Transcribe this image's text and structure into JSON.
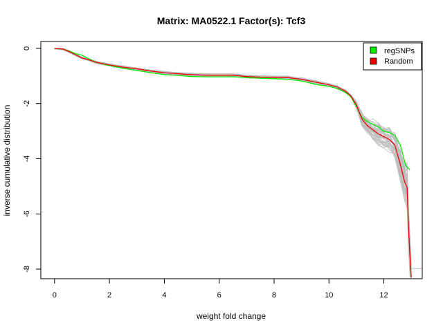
{
  "chart_data": {
    "type": "line",
    "title": "Matrix: MA0522.1 Factor(s): Tcf3",
    "xlabel": "weight fold change",
    "ylabel": "inverse cumulative distribution",
    "xlim": [
      -0.5,
      13.4
    ],
    "ylim": [
      -8.35,
      0.25
    ],
    "x_ticks": [
      "0",
      "2",
      "4",
      "6",
      "8",
      "10",
      "12"
    ],
    "y_ticks": [
      "0",
      "-2",
      "-4",
      "-6",
      "-8"
    ],
    "legend_position": "top-right",
    "series": [
      {
        "name": "regSNPs",
        "color": "#00ee00",
        "x": [
          0,
          0.3,
          0.5,
          0.8,
          1.0,
          1.2,
          1.5,
          2.0,
          2.5,
          3.0,
          3.5,
          4.0,
          4.5,
          5.0,
          5.5,
          6.0,
          6.5,
          7.0,
          7.5,
          8.0,
          8.5,
          9.0,
          9.5,
          10.0,
          10.3,
          10.6,
          10.8,
          11.0,
          11.2,
          11.4,
          11.6,
          11.8,
          12.0,
          12.2,
          12.4,
          12.6,
          12.8,
          12.95
        ],
        "y": [
          0,
          -0.02,
          -0.08,
          -0.2,
          -0.25,
          -0.35,
          -0.5,
          -0.62,
          -0.72,
          -0.8,
          -0.88,
          -0.95,
          -0.98,
          -1.02,
          -1.03,
          -1.03,
          -1.03,
          -1.06,
          -1.08,
          -1.1,
          -1.12,
          -1.18,
          -1.3,
          -1.38,
          -1.45,
          -1.6,
          -1.75,
          -2.1,
          -2.5,
          -2.65,
          -2.75,
          -2.85,
          -3.0,
          -3.05,
          -3.15,
          -3.5,
          -4.25,
          -4.4
        ]
      },
      {
        "name": "Random",
        "color": "#ee0000",
        "x": [
          0,
          0.3,
          0.5,
          0.8,
          1.0,
          1.2,
          1.5,
          2.0,
          2.5,
          3.0,
          3.5,
          4.0,
          4.5,
          5.0,
          5.5,
          6.0,
          6.5,
          7.0,
          7.5,
          8.0,
          8.5,
          9.0,
          9.5,
          10.0,
          10.3,
          10.6,
          10.8,
          11.0,
          11.2,
          11.4,
          11.6,
          11.8,
          12.0,
          12.2,
          12.4,
          12.6,
          12.75,
          12.85,
          12.9,
          12.95,
          13.0
        ],
        "y": [
          0,
          -0.02,
          -0.1,
          -0.25,
          -0.35,
          -0.4,
          -0.5,
          -0.6,
          -0.68,
          -0.74,
          -0.82,
          -0.88,
          -0.92,
          -0.95,
          -0.97,
          -0.97,
          -0.97,
          -1.02,
          -1.04,
          -1.05,
          -1.06,
          -1.12,
          -1.22,
          -1.32,
          -1.4,
          -1.55,
          -1.72,
          -2.05,
          -2.55,
          -2.8,
          -2.95,
          -3.1,
          -3.2,
          -3.3,
          -3.5,
          -4.2,
          -4.8,
          -5.05,
          -6.5,
          -7.5,
          -8.3
        ]
      }
    ]
  }
}
